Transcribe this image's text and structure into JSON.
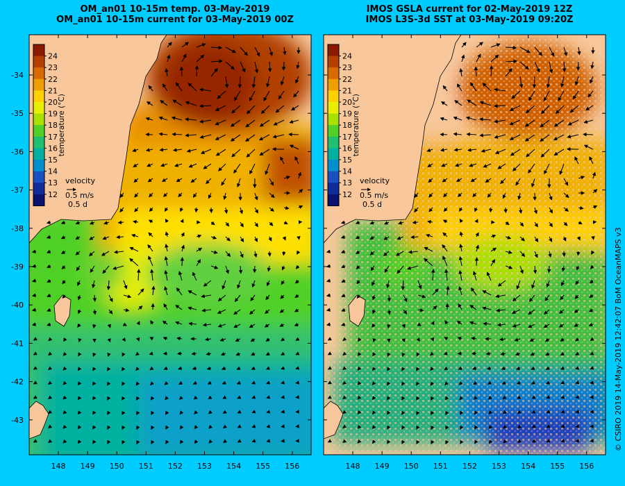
{
  "left_panel": {
    "title_line1": "OM_an01 10-15m temp. 03-May-2019",
    "title_line2": "OM_an01 10-15m current for 03-May-2019 00Z"
  },
  "right_panel": {
    "title_line1": "IMOS GSLA current for 02-May-2019 12Z",
    "title_line2": "IMOS L3S-3d SST at 03-May-2019 09:20Z"
  },
  "colorbar": {
    "label": "temperature (°C)",
    "ticks": [
      "24",
      "23",
      "22",
      "21",
      "20",
      "19",
      "18",
      "17",
      "16",
      "15",
      "14",
      "13",
      "12"
    ],
    "colors": [
      "#8b1a00",
      "#b54000",
      "#d86a00",
      "#eea000",
      "#ffd000",
      "#e8ee00",
      "#a8e000",
      "#50d028",
      "#20c070",
      "#00b0a0",
      "#0090d0",
      "#1850c0",
      "#102c9a",
      "#0a1470"
    ]
  },
  "legend": {
    "label": "velocity",
    "speed": "0.5 m/s",
    "duration": "0.5 d"
  },
  "x_ticks": [
    "148",
    "149",
    "150",
    "151",
    "152",
    "153",
    "154",
    "155",
    "156"
  ],
  "y_ticks": [
    "-34",
    "-35",
    "-36",
    "-37",
    "-38",
    "-39",
    "-40",
    "-41",
    "-42",
    "-43"
  ],
  "credit": "© CSIRO 2019   14-May-2019 12:42:07 BoM OceanMAPS v3",
  "colors": {
    "background": "#00ccff",
    "land": "#f8c89c",
    "coast": "#000000"
  }
}
